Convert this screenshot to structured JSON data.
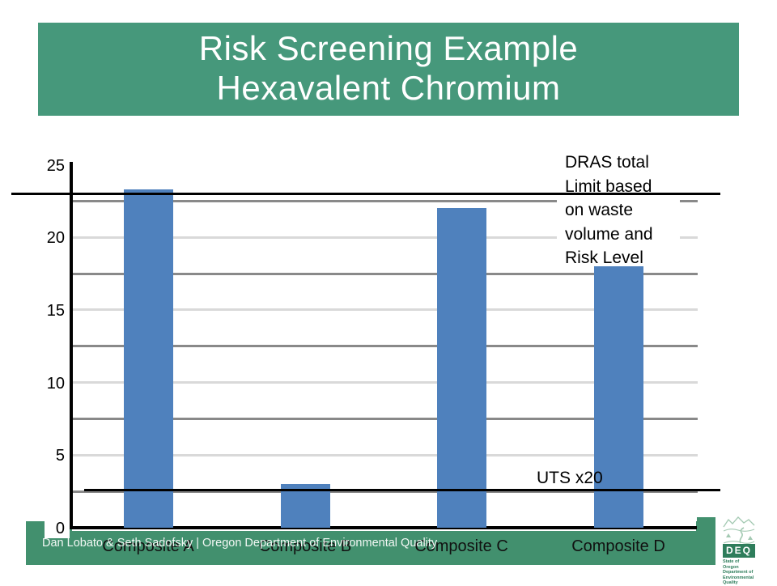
{
  "slide": {
    "title_line1": "Risk Screening Example",
    "title_line2": "Hexavalent Chromium",
    "footer_credit": "Dan Lobato & Seth Sadofsky |  Oregon Department of Environmental Quality"
  },
  "colors": {
    "banner_green": "#46987B",
    "footer_green": "#42906E",
    "bar_blue": "#4F81BD",
    "grid_dark": "#898989",
    "grid_light": "#D9D9D9",
    "reference_line": "#000000",
    "logo_green": "#2E7D5B",
    "logo_art_green": "#A3C9B2"
  },
  "chart_data": {
    "type": "bar",
    "categories": [
      "Composite A",
      "Composite B",
      "Composite C",
      "Composite D"
    ],
    "values": [
      23.3,
      3,
      22,
      18
    ],
    "title": "",
    "xlabel": "",
    "ylabel": "",
    "ylim": [
      0,
      25
    ],
    "yticks": [
      0,
      5,
      10,
      15,
      20,
      25
    ],
    "gridlines_light": [
      5,
      10,
      15,
      20
    ],
    "gridlines_dark": [
      2.5,
      7.5,
      12.5,
      17.5,
      22.5
    ],
    "legend": "none",
    "bar_color": "#4F81BD",
    "reference_lines": [
      {
        "name": "dras",
        "label": "DRAS total Limit based on waste volume and Risk Level",
        "value": 23
      },
      {
        "name": "uts",
        "label": "UTS x20",
        "value": 2.6
      }
    ]
  },
  "annotations": {
    "dras_lines": [
      "DRAS total",
      "Limit based",
      "on waste",
      "volume and",
      "Risk Level"
    ],
    "uts_label": "UTS x20"
  },
  "logo": {
    "acronym": "DEQ",
    "caption_lines": [
      "State of Oregon",
      "Department of",
      "Environmental",
      "Quality"
    ]
  }
}
